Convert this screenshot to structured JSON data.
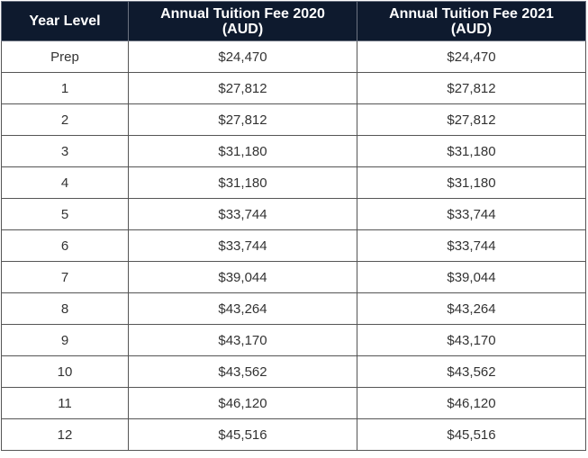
{
  "table": {
    "headers": {
      "year_level": "Year Level",
      "fee_2020_line1": "Annual Tuition Fee 2020",
      "fee_2020_line2": "(AUD)",
      "fee_2021_line1": "Annual Tuition Fee 2021",
      "fee_2021_line2": "(AUD)"
    },
    "rows": [
      {
        "level": "Prep",
        "fee_2020": "$24,470",
        "fee_2021": "$24,470"
      },
      {
        "level": "1",
        "fee_2020": "$27,812",
        "fee_2021": "$27,812"
      },
      {
        "level": "2",
        "fee_2020": "$27,812",
        "fee_2021": "$27,812"
      },
      {
        "level": "3",
        "fee_2020": "$31,180",
        "fee_2021": "$31,180"
      },
      {
        "level": "4",
        "fee_2020": "$31,180",
        "fee_2021": "$31,180"
      },
      {
        "level": "5",
        "fee_2020": "$33,744",
        "fee_2021": "$33,744"
      },
      {
        "level": "6",
        "fee_2020": "$33,744",
        "fee_2021": "$33,744"
      },
      {
        "level": "7",
        "fee_2020": "$39,044",
        "fee_2021": "$39,044"
      },
      {
        "level": "8",
        "fee_2020": "$43,264",
        "fee_2021": "$43,264"
      },
      {
        "level": "9",
        "fee_2020": "$43,170",
        "fee_2021": "$43,170"
      },
      {
        "level": "10",
        "fee_2020": "$43,562",
        "fee_2021": "$43,562"
      },
      {
        "level": "11",
        "fee_2020": "$46,120",
        "fee_2021": "$46,120"
      },
      {
        "level": "12",
        "fee_2020": "$45,516",
        "fee_2021": "$45,516"
      }
    ]
  }
}
